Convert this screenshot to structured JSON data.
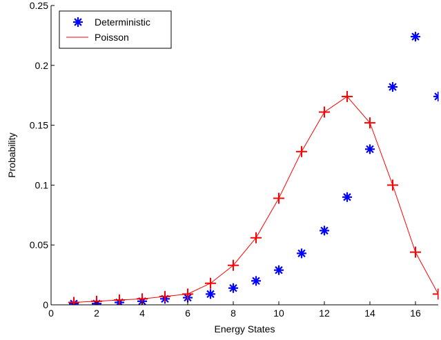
{
  "chart_data": {
    "type": "scatter",
    "title": "",
    "xlabel": "Energy States",
    "ylabel": "Probability",
    "xlim": [
      0,
      17
    ],
    "ylim": [
      0,
      0.25
    ],
    "xticks": [
      0,
      2,
      4,
      6,
      8,
      10,
      12,
      14,
      16
    ],
    "xtick_labels": [
      "0",
      "2",
      "4",
      "6",
      "8",
      "10",
      "12",
      "14",
      "16"
    ],
    "yticks": [
      0,
      0.05,
      0.1,
      0.15,
      0.2,
      0.25
    ],
    "ytick_labels": [
      "0",
      "0.05",
      "0.1",
      "0.15",
      "0.2",
      "0.25"
    ],
    "grid": false,
    "legend_position": "top-left",
    "series": [
      {
        "name": "Deterministic",
        "style": "markers",
        "marker": "asterisk",
        "color": "#0000ff",
        "x": [
          1,
          2,
          3,
          4,
          5,
          6,
          7,
          8,
          9,
          10,
          11,
          12,
          13,
          14,
          15,
          16,
          17
        ],
        "y": [
          0.001,
          0.001,
          0.002,
          0.003,
          0.005,
          0.006,
          0.009,
          0.014,
          0.02,
          0.029,
          0.043,
          0.062,
          0.09,
          0.13,
          0.182,
          0.224,
          0.174
        ]
      },
      {
        "name": "Poisson",
        "style": "line-with-markers",
        "marker": "plus",
        "color": "#ff0000",
        "x": [
          1,
          2,
          3,
          4,
          5,
          6,
          7,
          8,
          9,
          10,
          11,
          12,
          13,
          14,
          15,
          16,
          17
        ],
        "y": [
          0.002,
          0.003,
          0.004,
          0.005,
          0.007,
          0.009,
          0.018,
          0.033,
          0.056,
          0.089,
          0.128,
          0.161,
          0.174,
          0.152,
          0.1,
          0.044,
          0.009
        ]
      }
    ]
  }
}
